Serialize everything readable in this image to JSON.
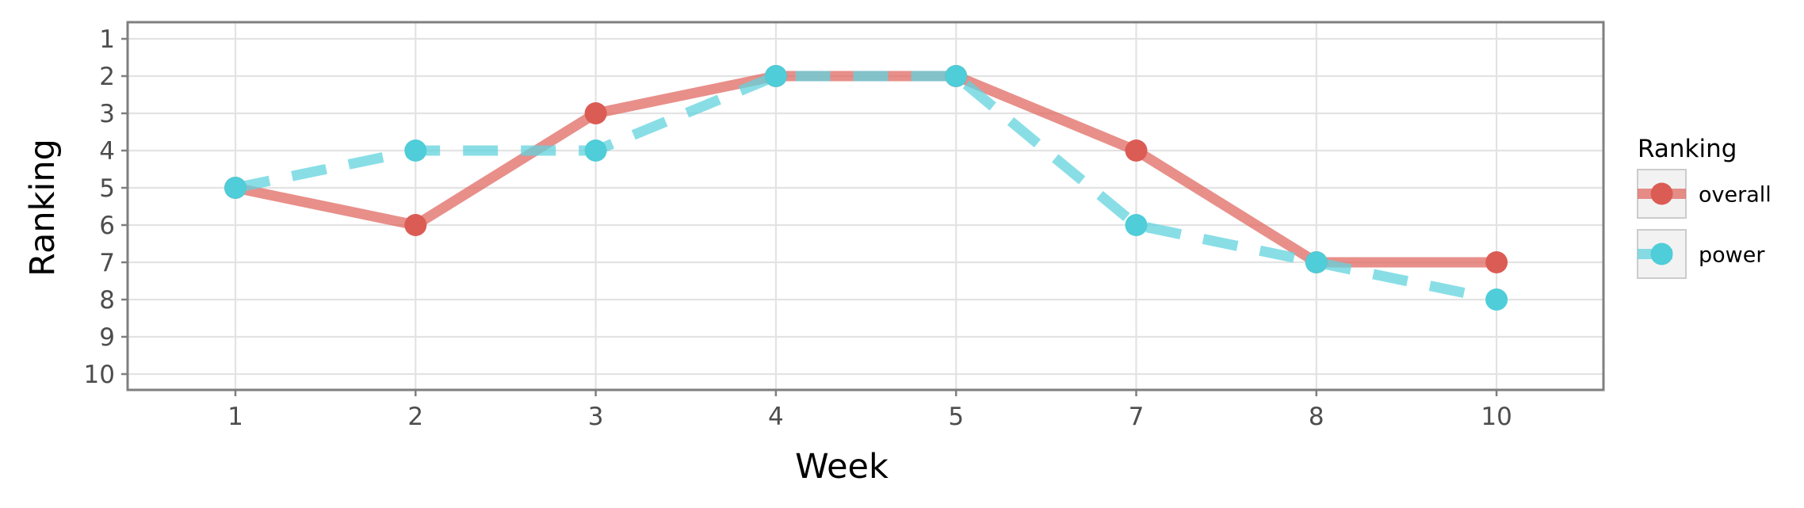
{
  "chart_data": {
    "type": "line",
    "title": "",
    "xlabel": "Week",
    "ylabel": "Ranking",
    "categories": [
      "1",
      "2",
      "3",
      "4",
      "5",
      "7",
      "8",
      "10"
    ],
    "y_ticks": [
      "1",
      "2",
      "3",
      "4",
      "5",
      "6",
      "7",
      "8",
      "9",
      "10"
    ],
    "ylim": [
      1,
      10
    ],
    "y_reversed": true,
    "grid": true,
    "legend": {
      "title": "Ranking",
      "position": "right"
    },
    "series": [
      {
        "name": "overall",
        "values": [
          5,
          6,
          3,
          2,
          2,
          4,
          7,
          7
        ],
        "color": "#E06A63",
        "point_color": "#DB5C54",
        "line_style": "solid"
      },
      {
        "name": "power",
        "values": [
          5,
          4,
          4,
          2,
          2,
          6,
          7,
          8
        ],
        "color": "#62D3DD",
        "point_color": "#4FCDD8",
        "line_style": "dashed"
      }
    ]
  }
}
